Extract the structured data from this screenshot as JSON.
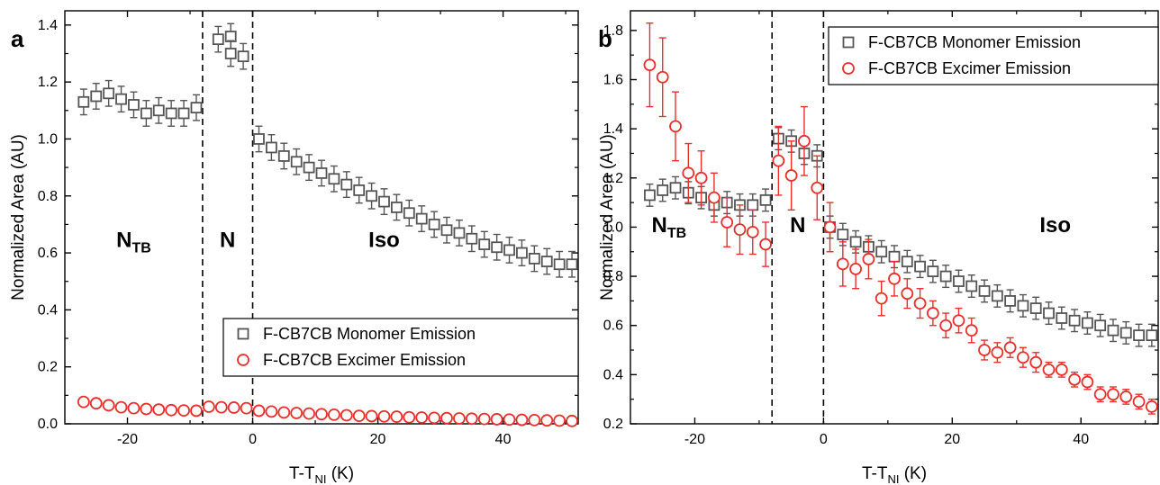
{
  "colors": {
    "monomer": "#555555",
    "excimer": "#e8302c",
    "axis": "#000000"
  },
  "chart_data": [
    {
      "panel": "a",
      "type": "scatter",
      "xlabel_main": "T-T",
      "xlabel_sub": "NI",
      "xlabel_unit": " (K)",
      "ylabel": "Normalized Area (AU)",
      "xlim": [
        -30,
        52
      ],
      "ylim": [
        0,
        1.45
      ],
      "xticks": [
        -20,
        0,
        20,
        40
      ],
      "yticks": [
        0.0,
        0.2,
        0.4,
        0.6,
        0.8,
        1.0,
        1.2,
        1.4
      ],
      "ytick_labels": [
        "0.0",
        "0.2",
        "0.4",
        "0.6",
        "0.8",
        "1.0",
        "1.2",
        "1.4"
      ],
      "phase_boundaries": [
        -8,
        0
      ],
      "phase_labels": [
        {
          "main": "N",
          "sub": "TB",
          "x": -19,
          "y": 0.62
        },
        {
          "main": "N",
          "sub": "",
          "x": -4,
          "y": 0.62
        },
        {
          "main": "Iso",
          "sub": "",
          "x": 21,
          "y": 0.62
        }
      ],
      "legend_position": "lower-right",
      "series": [
        {
          "name": "F-CB7CB Monomer Emission",
          "marker": "square",
          "x": [
            -27,
            -25,
            -23,
            -21,
            -19,
            -17,
            -15,
            -13,
            -11,
            -9,
            -3.5,
            -5.5,
            -3.5,
            -1.5,
            1,
            3,
            5,
            7,
            9,
            11,
            13,
            15,
            17,
            19,
            21,
            23,
            25,
            27,
            29,
            31,
            33,
            35,
            37,
            39,
            41,
            43,
            45,
            47,
            49,
            51
          ],
          "y": [
            1.13,
            1.15,
            1.16,
            1.14,
            1.12,
            1.09,
            1.1,
            1.09,
            1.09,
            1.11,
            1.36,
            1.35,
            1.3,
            1.29,
            1.0,
            0.97,
            0.94,
            0.92,
            0.9,
            0.88,
            0.86,
            0.84,
            0.82,
            0.8,
            0.78,
            0.76,
            0.74,
            0.72,
            0.7,
            0.68,
            0.67,
            0.65,
            0.63,
            0.62,
            0.61,
            0.6,
            0.58,
            0.57,
            0.56,
            0.56
          ],
          "err": 0.045
        },
        {
          "name": "F-CB7CB Excimer Emission",
          "marker": "circle",
          "x": [
            -27,
            -25,
            -23,
            -21,
            -19,
            -17,
            -15,
            -13,
            -11,
            -9,
            -7,
            -5,
            -3,
            -1,
            1,
            3,
            5,
            7,
            9,
            11,
            13,
            15,
            17,
            19,
            21,
            23,
            25,
            27,
            29,
            31,
            33,
            35,
            37,
            39,
            41,
            43,
            45,
            47,
            49,
            51
          ],
          "y": [
            0.077,
            0.072,
            0.065,
            0.058,
            0.055,
            0.052,
            0.05,
            0.048,
            0.047,
            0.046,
            0.06,
            0.058,
            0.057,
            0.055,
            0.046,
            0.043,
            0.04,
            0.038,
            0.036,
            0.034,
            0.032,
            0.03,
            0.028,
            0.027,
            0.026,
            0.025,
            0.023,
            0.022,
            0.021,
            0.02,
            0.019,
            0.018,
            0.017,
            0.016,
            0.015,
            0.014,
            0.013,
            0.012,
            0.011,
            0.01
          ],
          "err": 0.008
        }
      ]
    },
    {
      "panel": "b",
      "type": "scatter",
      "xlabel_main": "T-T",
      "xlabel_sub": "NI",
      "xlabel_unit": " (K)",
      "ylabel": "Normalized Area (AU)",
      "xlim": [
        -30,
        52
      ],
      "ylim": [
        0.2,
        1.88
      ],
      "xticks": [
        -20,
        0,
        20,
        40
      ],
      "yticks": [
        0.2,
        0.4,
        0.6,
        0.8,
        1.0,
        1.2,
        1.4,
        1.6,
        1.8
      ],
      "ytick_labels": [
        "0.2",
        "0.4",
        "0.6",
        "0.8",
        "1.0",
        "1.2",
        "1.4",
        "1.6",
        "1.8"
      ],
      "phase_boundaries": [
        -8,
        0
      ],
      "phase_labels": [
        {
          "main": "N",
          "sub": "TB",
          "x": -24,
          "y": 0.98
        },
        {
          "main": "N",
          "sub": "",
          "x": -4,
          "y": 0.98
        },
        {
          "main": "Iso",
          "sub": "",
          "x": 36,
          "y": 0.98
        }
      ],
      "legend_position": "top-right",
      "series": [
        {
          "name": "F-CB7CB Monomer Emission",
          "marker": "square",
          "x": [
            -27,
            -25,
            -23,
            -21,
            -19,
            -17,
            -15,
            -13,
            -11,
            -9,
            -7,
            -5,
            -3,
            -1,
            1,
            3,
            5,
            7,
            9,
            11,
            13,
            15,
            17,
            19,
            21,
            23,
            25,
            27,
            29,
            31,
            33,
            35,
            37,
            39,
            41,
            43,
            45,
            47,
            49,
            51
          ],
          "y": [
            1.13,
            1.15,
            1.16,
            1.14,
            1.12,
            1.09,
            1.1,
            1.09,
            1.09,
            1.11,
            1.36,
            1.35,
            1.3,
            1.29,
            1.0,
            0.97,
            0.94,
            0.92,
            0.9,
            0.88,
            0.86,
            0.84,
            0.82,
            0.8,
            0.78,
            0.76,
            0.74,
            0.72,
            0.7,
            0.68,
            0.67,
            0.65,
            0.63,
            0.62,
            0.61,
            0.6,
            0.58,
            0.57,
            0.56,
            0.56
          ],
          "err": 0.045
        },
        {
          "name": "F-CB7CB Excimer Emission",
          "marker": "circle",
          "x": [
            -27,
            -25,
            -23,
            -21,
            -19,
            -17,
            -15,
            -13,
            -11,
            -9,
            -7,
            -5,
            -3,
            -1,
            1,
            3,
            5,
            7,
            9,
            11,
            13,
            15,
            17,
            19,
            21,
            23,
            25,
            27,
            29,
            31,
            33,
            35,
            37,
            39,
            41,
            43,
            45,
            47,
            49,
            51
          ],
          "y": [
            1.66,
            1.61,
            1.41,
            1.22,
            1.2,
            1.12,
            1.02,
            0.99,
            0.98,
            0.93,
            1.27,
            1.21,
            1.35,
            1.16,
            1.0,
            0.85,
            0.83,
            0.87,
            0.71,
            0.79,
            0.73,
            0.69,
            0.65,
            0.6,
            0.62,
            0.58,
            0.5,
            0.49,
            0.51,
            0.47,
            0.45,
            0.42,
            0.42,
            0.38,
            0.37,
            0.32,
            0.32,
            0.31,
            0.29,
            0.27
          ],
          "err": [
            0.17,
            0.16,
            0.14,
            0.12,
            0.11,
            0.1,
            0.1,
            0.1,
            0.09,
            0.09,
            0.14,
            0.14,
            0.14,
            0.13,
            0.1,
            0.09,
            0.08,
            0.08,
            0.07,
            0.07,
            0.06,
            0.06,
            0.05,
            0.05,
            0.05,
            0.05,
            0.04,
            0.04,
            0.04,
            0.04,
            0.04,
            0.03,
            0.03,
            0.03,
            0.03,
            0.03,
            0.03,
            0.03,
            0.03,
            0.03
          ]
        }
      ]
    }
  ]
}
